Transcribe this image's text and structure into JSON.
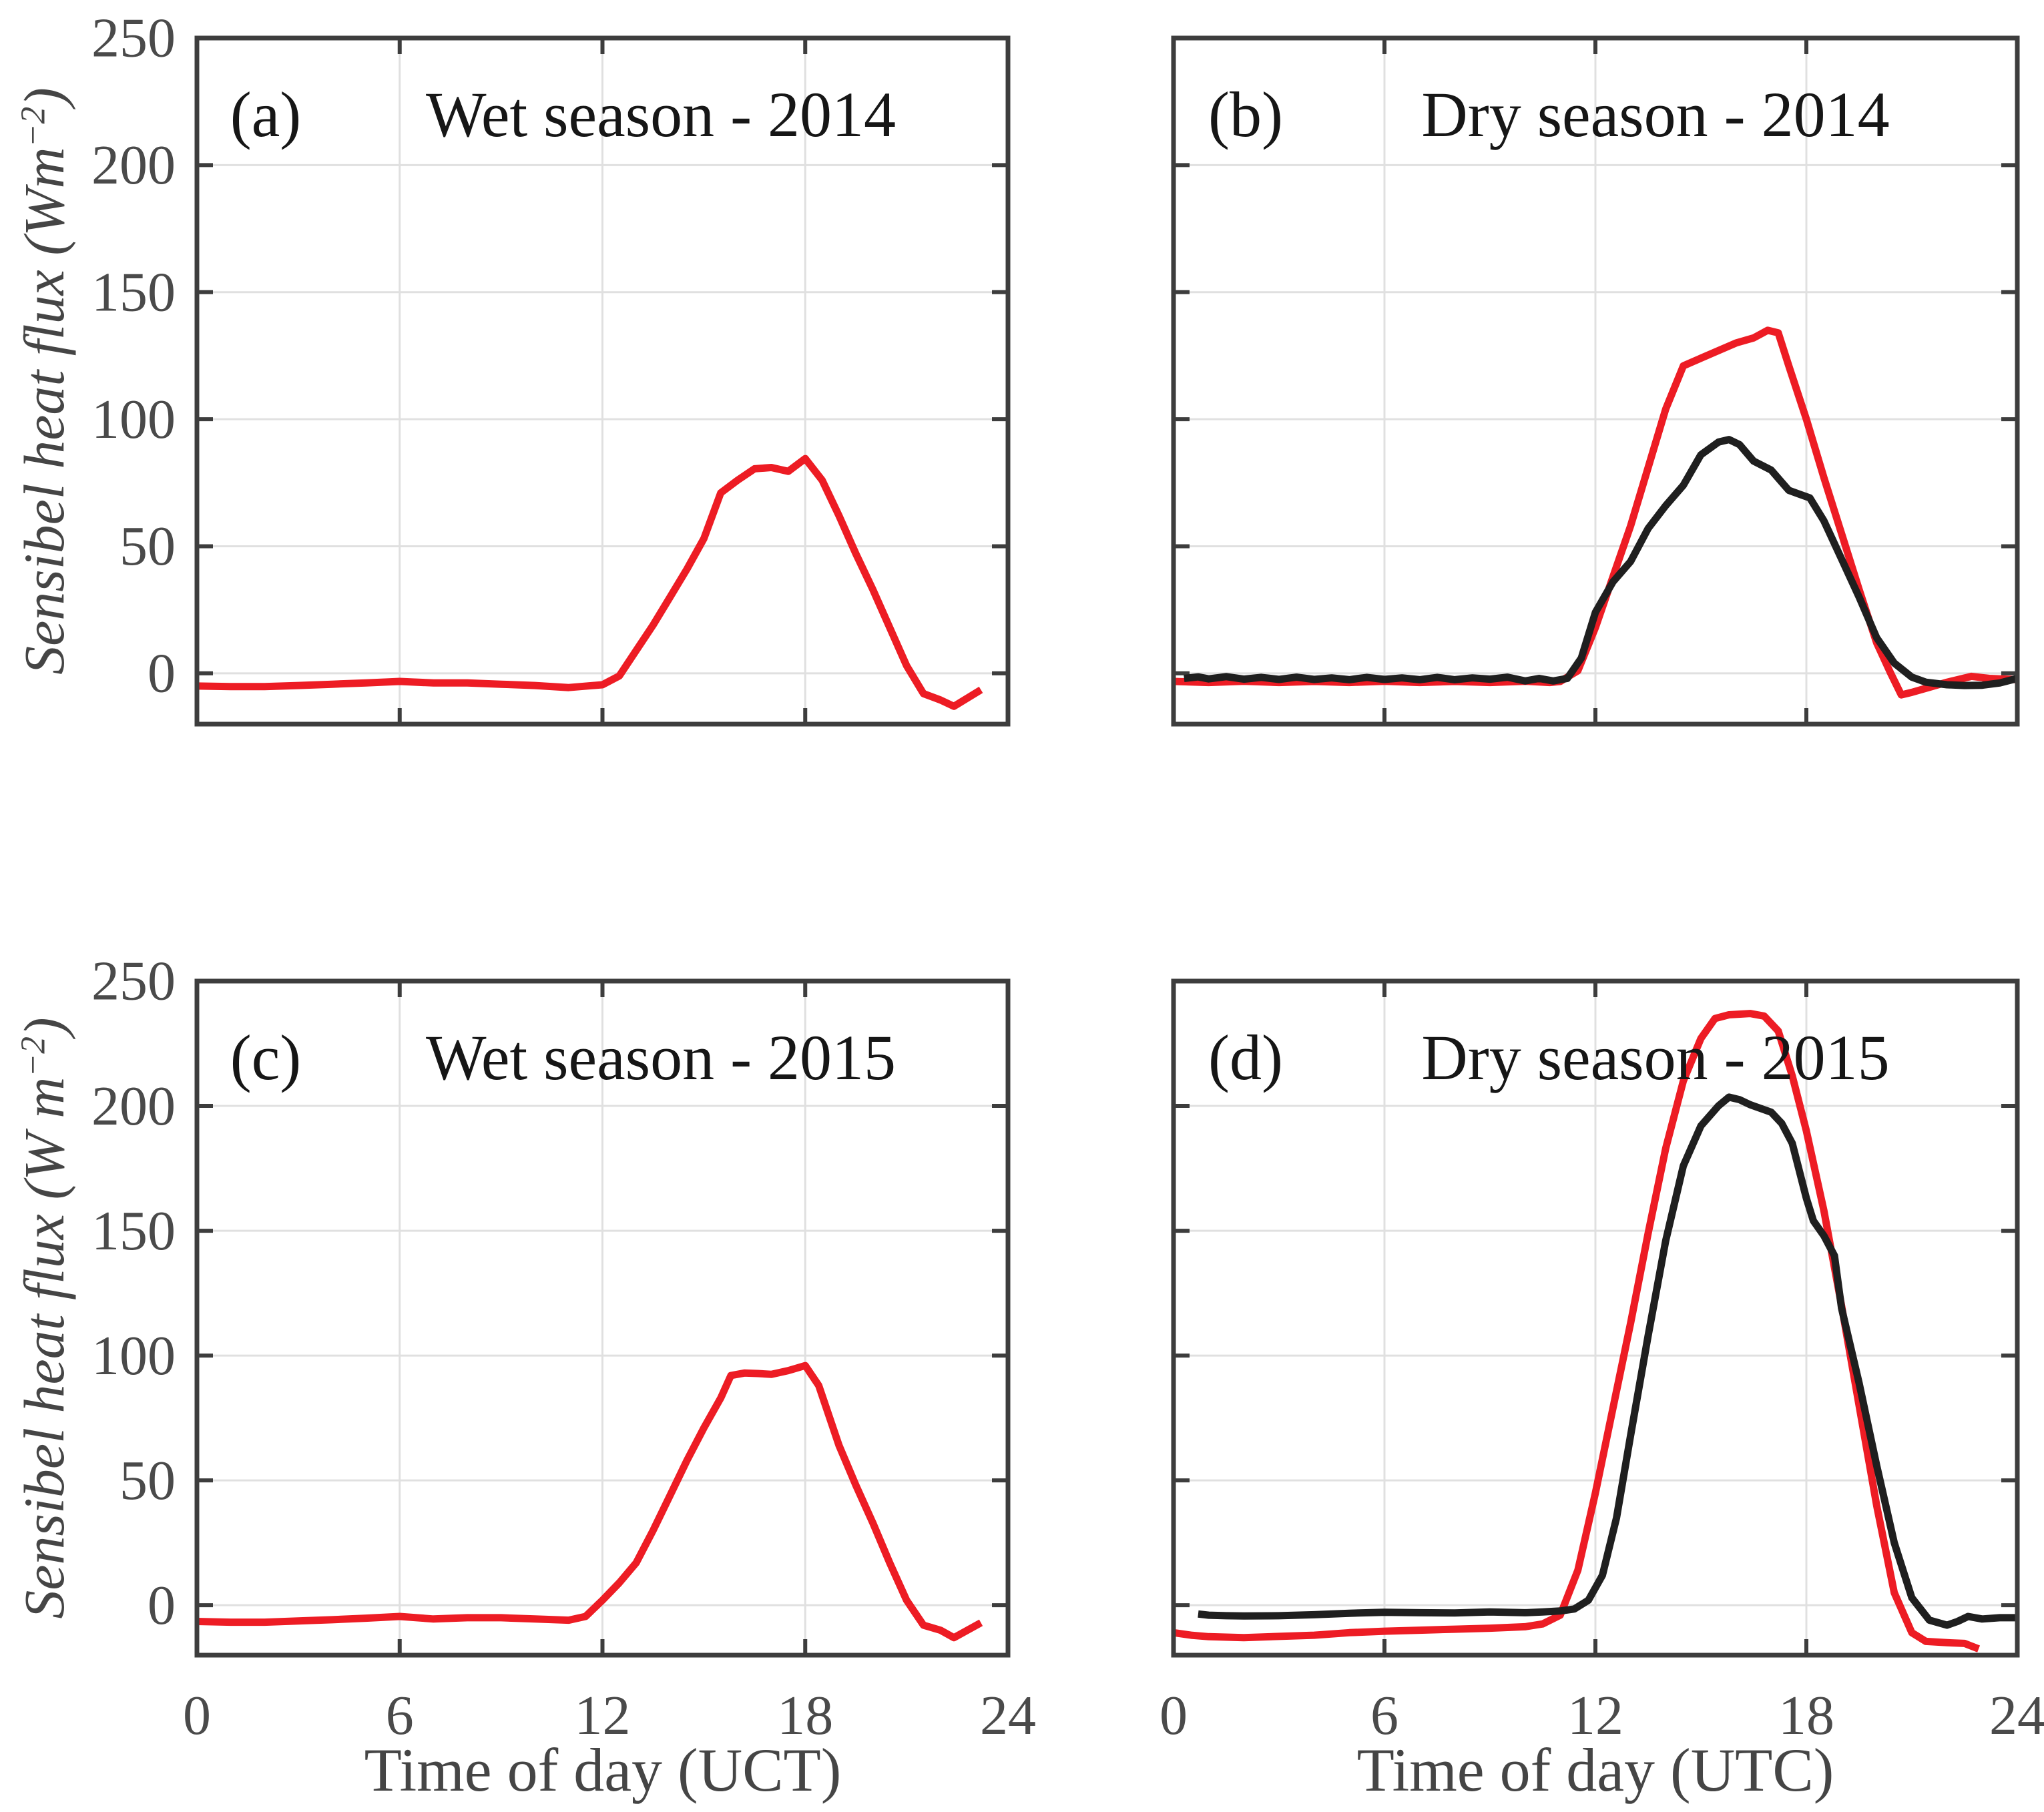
{
  "figure": {
    "background": "#ffffff",
    "colors": {
      "red_line": "#ed1c24",
      "black_line": "#1f1f1f",
      "axis": "#3d3d3d",
      "grid": "#e0e0e0",
      "tick_label": "#4a4a4a",
      "title_text": "#161616",
      "axis_label": "#454545"
    },
    "row1_ylabel": {
      "prefix": "Sensibel heat flux (Wm",
      "sup": "−2",
      "suffix": ")"
    },
    "row2_ylabel": {
      "prefix": "Sensibel heat flux (W m",
      "sup": "−2",
      "suffix": ")"
    },
    "xlabel_left": "Time of day (UCT)",
    "xlabel_right": "Time of day (UTC)"
  },
  "chart_data": [
    {
      "id": "a",
      "panel_label": "(a)",
      "title": "Wet season - 2014",
      "type": "line",
      "xlabel": "",
      "ylabel": "Sensibel heat flux (Wm^-2)",
      "xlim": [
        0,
        24
      ],
      "ylim": [
        -20,
        250
      ],
      "x_ticks": [
        0,
        6,
        12,
        18,
        24
      ],
      "y_ticks": [
        0,
        50,
        100,
        150,
        200,
        250
      ],
      "grid": true,
      "series": [
        {
          "name": "red",
          "color": "red_line",
          "points": [
            [
              0,
              -5
            ],
            [
              1,
              -5.2
            ],
            [
              2,
              -5.2
            ],
            [
              3,
              -4.8
            ],
            [
              4,
              -4.3
            ],
            [
              5,
              -3.8
            ],
            [
              6,
              -3.2
            ],
            [
              7,
              -3.8
            ],
            [
              8,
              -3.8
            ],
            [
              9,
              -4.3
            ],
            [
              10,
              -4.8
            ],
            [
              11,
              -5.6
            ],
            [
              12,
              -4.5
            ],
            [
              12.5,
              -1
            ],
            [
              13,
              9
            ],
            [
              13.5,
              19
            ],
            [
              14,
              30
            ],
            [
              14.5,
              41
            ],
            [
              15,
              53
            ],
            [
              15.5,
              71
            ],
            [
              16,
              76
            ],
            [
              16.5,
              80.5
            ],
            [
              17,
              81
            ],
            [
              17.5,
              79.5
            ],
            [
              18,
              84.5
            ],
            [
              18.5,
              76
            ],
            [
              19,
              62
            ],
            [
              19.5,
              47
            ],
            [
              20,
              33
            ],
            [
              20.5,
              18
            ],
            [
              21,
              3
            ],
            [
              21.5,
              -8
            ],
            [
              22,
              -10.5
            ],
            [
              22.4,
              -13
            ],
            [
              23.2,
              -6.5
            ]
          ]
        }
      ]
    },
    {
      "id": "b",
      "panel_label": "(b)",
      "title": "Dry season - 2014",
      "type": "line",
      "xlabel": "",
      "ylabel": "Sensibel heat flux (Wm^-2)",
      "xlim": [
        0,
        24
      ],
      "ylim": [
        -20,
        250
      ],
      "x_ticks": [
        0,
        6,
        12,
        18,
        24
      ],
      "y_ticks": [
        0,
        50,
        100,
        150,
        200,
        250
      ],
      "grid": true,
      "series": [
        {
          "name": "red",
          "color": "red_line",
          "points": [
            [
              0,
              -3.2
            ],
            [
              1,
              -3.6
            ],
            [
              2,
              -3.1
            ],
            [
              3,
              -3.6
            ],
            [
              4,
              -3.2
            ],
            [
              5,
              -3.6
            ],
            [
              6,
              -3.1
            ],
            [
              7,
              -3.6
            ],
            [
              8,
              -3.2
            ],
            [
              9,
              -3.6
            ],
            [
              10,
              -3.1
            ],
            [
              10.7,
              -3.6
            ],
            [
              11,
              -3.2
            ],
            [
              11.5,
              1
            ],
            [
              12,
              18
            ],
            [
              12.5,
              38
            ],
            [
              13,
              58
            ],
            [
              13.5,
              81
            ],
            [
              14,
              104
            ],
            [
              14.5,
              121
            ],
            [
              15,
              124
            ],
            [
              15.5,
              127
            ],
            [
              16,
              130
            ],
            [
              16.5,
              132
            ],
            [
              16.9,
              135
            ],
            [
              17.2,
              134
            ],
            [
              17.5,
              121
            ],
            [
              18,
              100
            ],
            [
              18.5,
              77
            ],
            [
              19,
              55
            ],
            [
              19.5,
              33
            ],
            [
              20,
              12
            ],
            [
              20.4,
              0
            ],
            [
              20.7,
              -8.5
            ],
            [
              21,
              -7.5
            ],
            [
              21.5,
              -5.5
            ],
            [
              22,
              -3.5
            ],
            [
              22.7,
              -1.2
            ],
            [
              23.2,
              -2
            ],
            [
              24,
              -2.5
            ]
          ]
        },
        {
          "name": "black",
          "color": "black_line",
          "points": [
            [
              0.3,
              -2
            ],
            [
              0.7,
              -1.4
            ],
            [
              1,
              -2.2
            ],
            [
              1.5,
              -1.3
            ],
            [
              2,
              -2.3
            ],
            [
              2.5,
              -1.6
            ],
            [
              3,
              -2.4
            ],
            [
              3.5,
              -1.5
            ],
            [
              4,
              -2.4
            ],
            [
              4.5,
              -1.8
            ],
            [
              5,
              -2.5
            ],
            [
              5.5,
              -1.6
            ],
            [
              6,
              -2.4
            ],
            [
              6.5,
              -1.8
            ],
            [
              7,
              -2.5
            ],
            [
              7.5,
              -1.6
            ],
            [
              8,
              -2.5
            ],
            [
              8.5,
              -1.8
            ],
            [
              9,
              -2.3
            ],
            [
              9.5,
              -1.5
            ],
            [
              10,
              -3
            ],
            [
              10.4,
              -2
            ],
            [
              10.8,
              -3
            ],
            [
              11.2,
              -2
            ],
            [
              11.6,
              6
            ],
            [
              12,
              24
            ],
            [
              12.5,
              36
            ],
            [
              13,
              44
            ],
            [
              13.5,
              57
            ],
            [
              14,
              66
            ],
            [
              14.5,
              74
            ],
            [
              15,
              86
            ],
            [
              15.5,
              91
            ],
            [
              15.8,
              92
            ],
            [
              16.1,
              90
            ],
            [
              16.5,
              83.5
            ],
            [
              17,
              80
            ],
            [
              17.5,
              72
            ],
            [
              17.8,
              70.5
            ],
            [
              18.1,
              69
            ],
            [
              18.5,
              60
            ],
            [
              19,
              45
            ],
            [
              19.5,
              30
            ],
            [
              20,
              14
            ],
            [
              20.5,
              4
            ],
            [
              21,
              -1.5
            ],
            [
              21.4,
              -3.5
            ],
            [
              22,
              -4.5
            ],
            [
              22.5,
              -4.8
            ],
            [
              23,
              -4.7
            ],
            [
              23.5,
              -3.8
            ],
            [
              24,
              -2
            ]
          ]
        }
      ]
    },
    {
      "id": "c",
      "panel_label": "(c)",
      "title": "Wet season - 2015",
      "type": "line",
      "xlabel": "Time of day (UCT)",
      "ylabel": "Sensibel heat flux (W m^-2)",
      "xlim": [
        0,
        24
      ],
      "ylim": [
        -20,
        250
      ],
      "x_ticks": [
        0,
        6,
        12,
        18,
        24
      ],
      "y_ticks": [
        0,
        50,
        100,
        150,
        200,
        250
      ],
      "grid": true,
      "series": [
        {
          "name": "red",
          "color": "red_line",
          "points": [
            [
              0,
              -6.5
            ],
            [
              1,
              -6.8
            ],
            [
              2,
              -6.8
            ],
            [
              3,
              -6.3
            ],
            [
              4,
              -5.8
            ],
            [
              5,
              -5.2
            ],
            [
              6,
              -4.5
            ],
            [
              7,
              -5.5
            ],
            [
              8,
              -5
            ],
            [
              9,
              -5
            ],
            [
              10,
              -5.5
            ],
            [
              11,
              -6
            ],
            [
              11.5,
              -4.5
            ],
            [
              12,
              2
            ],
            [
              12.5,
              9
            ],
            [
              13,
              17
            ],
            [
              13.5,
              30
            ],
            [
              14,
              44
            ],
            [
              14.5,
              58
            ],
            [
              15,
              71
            ],
            [
              15.5,
              83
            ],
            [
              15.8,
              92
            ],
            [
              16.2,
              93
            ],
            [
              16.6,
              92.8
            ],
            [
              17,
              92.5
            ],
            [
              17.5,
              94
            ],
            [
              18,
              96
            ],
            [
              18.4,
              88
            ],
            [
              19,
              64
            ],
            [
              19.5,
              48
            ],
            [
              20,
              33
            ],
            [
              20.5,
              17
            ],
            [
              21,
              2
            ],
            [
              21.5,
              -8
            ],
            [
              22,
              -10
            ],
            [
              22.4,
              -13
            ],
            [
              23.2,
              -7
            ]
          ]
        }
      ]
    },
    {
      "id": "d",
      "panel_label": "(d)",
      "title": "Dry season - 2015",
      "type": "line",
      "xlabel": "Time of day (UTC)",
      "ylabel": "Sensibel heat flux (W m^-2)",
      "xlim": [
        0,
        24
      ],
      "ylim": [
        -20,
        250
      ],
      "x_ticks": [
        0,
        6,
        12,
        18,
        24
      ],
      "y_ticks": [
        0,
        50,
        100,
        150,
        200,
        250
      ],
      "grid": true,
      "series": [
        {
          "name": "red",
          "color": "red_line",
          "points": [
            [
              0,
              -11
            ],
            [
              0.5,
              -12
            ],
            [
              1,
              -12.6
            ],
            [
              2,
              -13
            ],
            [
              3,
              -12.5
            ],
            [
              4,
              -12
            ],
            [
              5,
              -11
            ],
            [
              6,
              -10.4
            ],
            [
              7,
              -10
            ],
            [
              8,
              -9.6
            ],
            [
              9,
              -9.2
            ],
            [
              10,
              -8.6
            ],
            [
              10.5,
              -7.5
            ],
            [
              11,
              -4
            ],
            [
              11.5,
              14
            ],
            [
              12,
              45
            ],
            [
              12.5,
              79
            ],
            [
              13,
              113
            ],
            [
              13.5,
              149
            ],
            [
              14,
              183
            ],
            [
              14.5,
              210
            ],
            [
              15,
              227
            ],
            [
              15.4,
              235
            ],
            [
              15.8,
              236.5
            ],
            [
              16.4,
              237
            ],
            [
              16.8,
              236
            ],
            [
              17.2,
              230
            ],
            [
              17.6,
              212
            ],
            [
              18,
              190
            ],
            [
              18.5,
              158
            ],
            [
              19,
              120
            ],
            [
              19.5,
              80
            ],
            [
              20,
              40
            ],
            [
              20.5,
              5
            ],
            [
              21,
              -11
            ],
            [
              21.4,
              -14.5
            ],
            [
              22,
              -15
            ],
            [
              22.5,
              -15.3
            ],
            [
              22.9,
              -17.5
            ]
          ]
        },
        {
          "name": "black",
          "color": "black_line",
          "points": [
            [
              0.7,
              -3.5
            ],
            [
              1,
              -4
            ],
            [
              1.5,
              -4.2
            ],
            [
              2,
              -4.3
            ],
            [
              3,
              -4.2
            ],
            [
              4,
              -3.8
            ],
            [
              5,
              -3.2
            ],
            [
              6,
              -2.8
            ],
            [
              7,
              -3
            ],
            [
              8,
              -3.1
            ],
            [
              9,
              -2.7
            ],
            [
              10,
              -3
            ],
            [
              10.5,
              -2.7
            ],
            [
              11,
              -2.3
            ],
            [
              11.4,
              -1.5
            ],
            [
              11.8,
              2
            ],
            [
              12.2,
              12
            ],
            [
              12.6,
              35
            ],
            [
              13,
              68
            ],
            [
              13.5,
              108
            ],
            [
              14,
              146
            ],
            [
              14.5,
              176
            ],
            [
              15,
              192
            ],
            [
              15.5,
              200
            ],
            [
              15.8,
              203.5
            ],
            [
              16.1,
              202.5
            ],
            [
              16.4,
              200.5
            ],
            [
              17,
              197.5
            ],
            [
              17.3,
              193
            ],
            [
              17.6,
              185
            ],
            [
              18,
              163
            ],
            [
              18.2,
              154
            ],
            [
              18.5,
              148
            ],
            [
              18.8,
              140
            ],
            [
              19,
              119
            ],
            [
              19.5,
              89
            ],
            [
              20,
              56
            ],
            [
              20.5,
              25
            ],
            [
              21,
              3
            ],
            [
              21.5,
              -6
            ],
            [
              22,
              -8
            ],
            [
              22.3,
              -6.5
            ],
            [
              22.6,
              -4.5
            ],
            [
              23,
              -5.5
            ],
            [
              23.5,
              -5
            ],
            [
              24,
              -5
            ]
          ]
        }
      ]
    }
  ]
}
